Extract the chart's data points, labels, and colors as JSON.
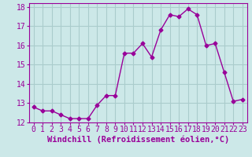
{
  "x": [
    0,
    1,
    2,
    3,
    4,
    5,
    6,
    7,
    8,
    9,
    10,
    11,
    12,
    13,
    14,
    15,
    16,
    17,
    18,
    19,
    20,
    21,
    22,
    23
  ],
  "y": [
    12.8,
    12.6,
    12.6,
    12.4,
    12.2,
    12.2,
    12.2,
    12.9,
    13.4,
    13.4,
    15.6,
    15.6,
    16.1,
    15.4,
    16.8,
    17.6,
    17.5,
    17.9,
    17.6,
    16.0,
    16.1,
    14.6,
    13.1,
    13.2
  ],
  "line_color": "#990099",
  "marker": "D",
  "marker_size": 2.5,
  "background_color": "#cce8e8",
  "grid_color": "#aacccc",
  "xlabel": "Windchill (Refroidissement éolien,°C)",
  "xlabel_fontsize": 7.5,
  "tick_fontsize": 7,
  "xlim": [
    -0.5,
    23.5
  ],
  "ylim": [
    12,
    18.2
  ],
  "yticks": [
    12,
    13,
    14,
    15,
    16,
    17,
    18
  ],
  "xticks": [
    0,
    1,
    2,
    3,
    4,
    5,
    6,
    7,
    8,
    9,
    10,
    11,
    12,
    13,
    14,
    15,
    16,
    17,
    18,
    19,
    20,
    21,
    22,
    23
  ]
}
